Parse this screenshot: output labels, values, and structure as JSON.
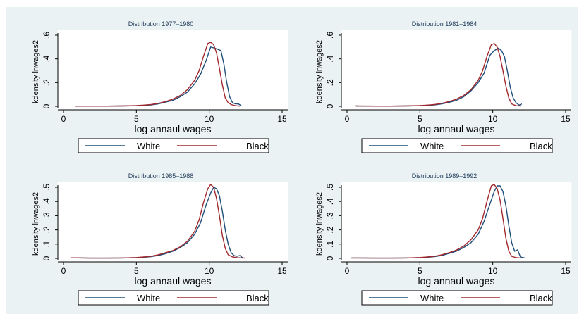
{
  "chart_data": [
    {
      "type": "line",
      "title": "Distribution 1977–1980",
      "xlabel": "log annaul wages",
      "ylabel": "kdensity lnwages2",
      "xlim": [
        0,
        15
      ],
      "ylim": [
        0,
        0.6
      ],
      "xticks": [
        0,
        5,
        10,
        15
      ],
      "yticks": [
        0,
        0.2,
        0.4,
        0.6
      ],
      "ytick_labels": [
        "0",
        ".2",
        ".4",
        ".6"
      ],
      "series": [
        {
          "name": "White",
          "color": "#1f4e79",
          "x": [
            0.8,
            2,
            3,
            4,
            5,
            5.5,
            6,
            6.5,
            7,
            7.5,
            8,
            8.5,
            9,
            9.4,
            9.8,
            10.1,
            10.4,
            10.6,
            10.8,
            11.0,
            11.2,
            11.4,
            11.6,
            11.8,
            12.0,
            12.2
          ],
          "y": [
            0.002,
            0.002,
            0.002,
            0.003,
            0.005,
            0.008,
            0.012,
            0.02,
            0.035,
            0.05,
            0.08,
            0.12,
            0.19,
            0.27,
            0.39,
            0.5,
            0.49,
            0.48,
            0.47,
            0.36,
            0.2,
            0.08,
            0.03,
            0.02,
            0.02,
            0.005
          ]
        },
        {
          "name": "Black",
          "color": "#a0282d",
          "x": [
            0.8,
            2,
            3,
            4,
            5,
            5.5,
            6,
            6.5,
            7,
            7.5,
            8,
            8.5,
            9,
            9.3,
            9.6,
            9.9,
            10.1,
            10.3,
            10.5,
            10.7,
            10.9,
            11.1,
            11.3,
            11.5,
            11.8,
            12.1
          ],
          "y": [
            0.002,
            0.002,
            0.002,
            0.003,
            0.006,
            0.01,
            0.015,
            0.025,
            0.04,
            0.06,
            0.09,
            0.14,
            0.22,
            0.3,
            0.42,
            0.53,
            0.54,
            0.52,
            0.45,
            0.32,
            0.18,
            0.07,
            0.03,
            0.015,
            0.005,
            0.002
          ]
        }
      ]
    },
    {
      "type": "line",
      "title": "Distribution 1981–1984",
      "xlabel": "log annaul wages",
      "ylabel": "kdensity lnwages2",
      "xlim": [
        0,
        15
      ],
      "ylim": [
        0,
        0.6
      ],
      "xticks": [
        0,
        5,
        10,
        15
      ],
      "yticks": [
        0,
        0.2,
        0.4,
        0.6
      ],
      "ytick_labels": [
        "0",
        ".2",
        ".4",
        ".6"
      ],
      "series": [
        {
          "name": "White",
          "color": "#1f4e79",
          "x": [
            0.6,
            2,
            3,
            4,
            5,
            5.5,
            6,
            6.5,
            7,
            7.5,
            8,
            8.5,
            9,
            9.4,
            9.8,
            10.1,
            10.4,
            10.6,
            10.8,
            11.0,
            11.2,
            11.4,
            11.6,
            11.8,
            12.0
          ],
          "y": [
            0.003,
            0.002,
            0.002,
            0.003,
            0.005,
            0.008,
            0.012,
            0.02,
            0.033,
            0.05,
            0.08,
            0.13,
            0.2,
            0.28,
            0.43,
            0.47,
            0.49,
            0.47,
            0.42,
            0.3,
            0.16,
            0.07,
            0.03,
            0.01,
            0.02
          ]
        },
        {
          "name": "Black",
          "color": "#a0282d",
          "x": [
            0.6,
            2,
            3,
            4,
            5,
            5.5,
            6,
            6.5,
            7,
            7.5,
            8,
            8.5,
            9,
            9.3,
            9.6,
            9.9,
            10.1,
            10.3,
            10.5,
            10.7,
            10.9,
            11.1,
            11.3,
            11.6,
            11.9
          ],
          "y": [
            0.003,
            0.002,
            0.002,
            0.003,
            0.006,
            0.01,
            0.015,
            0.025,
            0.04,
            0.06,
            0.09,
            0.14,
            0.22,
            0.3,
            0.42,
            0.52,
            0.53,
            0.5,
            0.42,
            0.3,
            0.17,
            0.07,
            0.02,
            0.005,
            0.003
          ]
        }
      ]
    },
    {
      "type": "line",
      "title": "Distribution 1985–1988",
      "xlabel": "log annaul wages",
      "ylabel": "kdensity lnwages2",
      "xlim": [
        0,
        15
      ],
      "ylim": [
        0,
        0.5
      ],
      "xticks": [
        0,
        5,
        10,
        15
      ],
      "yticks": [
        0,
        0.1,
        0.2,
        0.3,
        0.4,
        0.5
      ],
      "ytick_labels": [
        "0",
        ".1",
        ".2",
        ".3",
        ".4",
        ".5"
      ],
      "series": [
        {
          "name": "White",
          "color": "#1f4e79",
          "x": [
            0.5,
            2,
            3,
            4,
            5,
            5.5,
            6,
            6.5,
            7,
            7.5,
            8,
            8.5,
            9,
            9.4,
            9.8,
            10.1,
            10.3,
            10.5,
            10.7,
            10.9,
            11.1,
            11.3,
            11.5,
            11.7,
            11.9,
            12.1,
            12.3
          ],
          "y": [
            0.004,
            0.002,
            0.002,
            0.003,
            0.005,
            0.008,
            0.012,
            0.02,
            0.033,
            0.05,
            0.075,
            0.11,
            0.17,
            0.25,
            0.38,
            0.46,
            0.5,
            0.49,
            0.44,
            0.33,
            0.2,
            0.1,
            0.04,
            0.02,
            0.015,
            0.02,
            0.003
          ]
        },
        {
          "name": "Black",
          "color": "#a0282d",
          "x": [
            0.5,
            2,
            3,
            4,
            5,
            5.5,
            6,
            6.5,
            7,
            7.5,
            8,
            8.5,
            9,
            9.3,
            9.6,
            9.9,
            10.1,
            10.3,
            10.5,
            10.7,
            10.9,
            11.1,
            11.3,
            11.6,
            11.9,
            12.2,
            12.5
          ],
          "y": [
            0.004,
            0.002,
            0.002,
            0.003,
            0.006,
            0.01,
            0.015,
            0.025,
            0.04,
            0.055,
            0.08,
            0.12,
            0.19,
            0.27,
            0.39,
            0.49,
            0.52,
            0.5,
            0.42,
            0.3,
            0.16,
            0.07,
            0.025,
            0.01,
            0.005,
            0.003,
            0.003
          ]
        }
      ]
    },
    {
      "type": "line",
      "title": "Distribution 1989–1992",
      "xlabel": "log annaul wages",
      "ylabel": "kdensity lnwages2",
      "xlim": [
        0,
        15
      ],
      "ylim": [
        0,
        0.5
      ],
      "xticks": [
        0,
        5,
        10,
        15
      ],
      "yticks": [
        0,
        0.1,
        0.2,
        0.3,
        0.4,
        0.5
      ],
      "ytick_labels": [
        "0",
        ".1",
        ".2",
        ".3",
        ".4",
        ".5"
      ],
      "series": [
        {
          "name": "White",
          "color": "#1f4e79",
          "x": [
            0.3,
            2,
            3,
            4,
            5,
            5.5,
            6,
            6.5,
            7,
            7.5,
            8,
            8.5,
            9,
            9.4,
            9.8,
            10.1,
            10.3,
            10.5,
            10.7,
            10.9,
            11.1,
            11.3,
            11.5,
            11.7,
            11.9,
            12.2
          ],
          "y": [
            0.003,
            0.002,
            0.002,
            0.003,
            0.005,
            0.008,
            0.012,
            0.02,
            0.035,
            0.05,
            0.075,
            0.11,
            0.17,
            0.26,
            0.38,
            0.47,
            0.51,
            0.51,
            0.47,
            0.37,
            0.23,
            0.11,
            0.05,
            0.06,
            0.01,
            0.003
          ]
        },
        {
          "name": "Black",
          "color": "#a0282d",
          "x": [
            0.3,
            2,
            3,
            4,
            5,
            5.5,
            6,
            6.5,
            7,
            7.5,
            8,
            8.5,
            9,
            9.3,
            9.6,
            9.9,
            10.1,
            10.3,
            10.5,
            10.7,
            10.9,
            11.1,
            11.3,
            11.6,
            11.9
          ],
          "y": [
            0.003,
            0.002,
            0.002,
            0.003,
            0.006,
            0.01,
            0.015,
            0.025,
            0.04,
            0.058,
            0.085,
            0.13,
            0.2,
            0.28,
            0.4,
            0.51,
            0.52,
            0.49,
            0.41,
            0.28,
            0.14,
            0.05,
            0.015,
            0.005,
            0.003
          ]
        }
      ]
    }
  ]
}
